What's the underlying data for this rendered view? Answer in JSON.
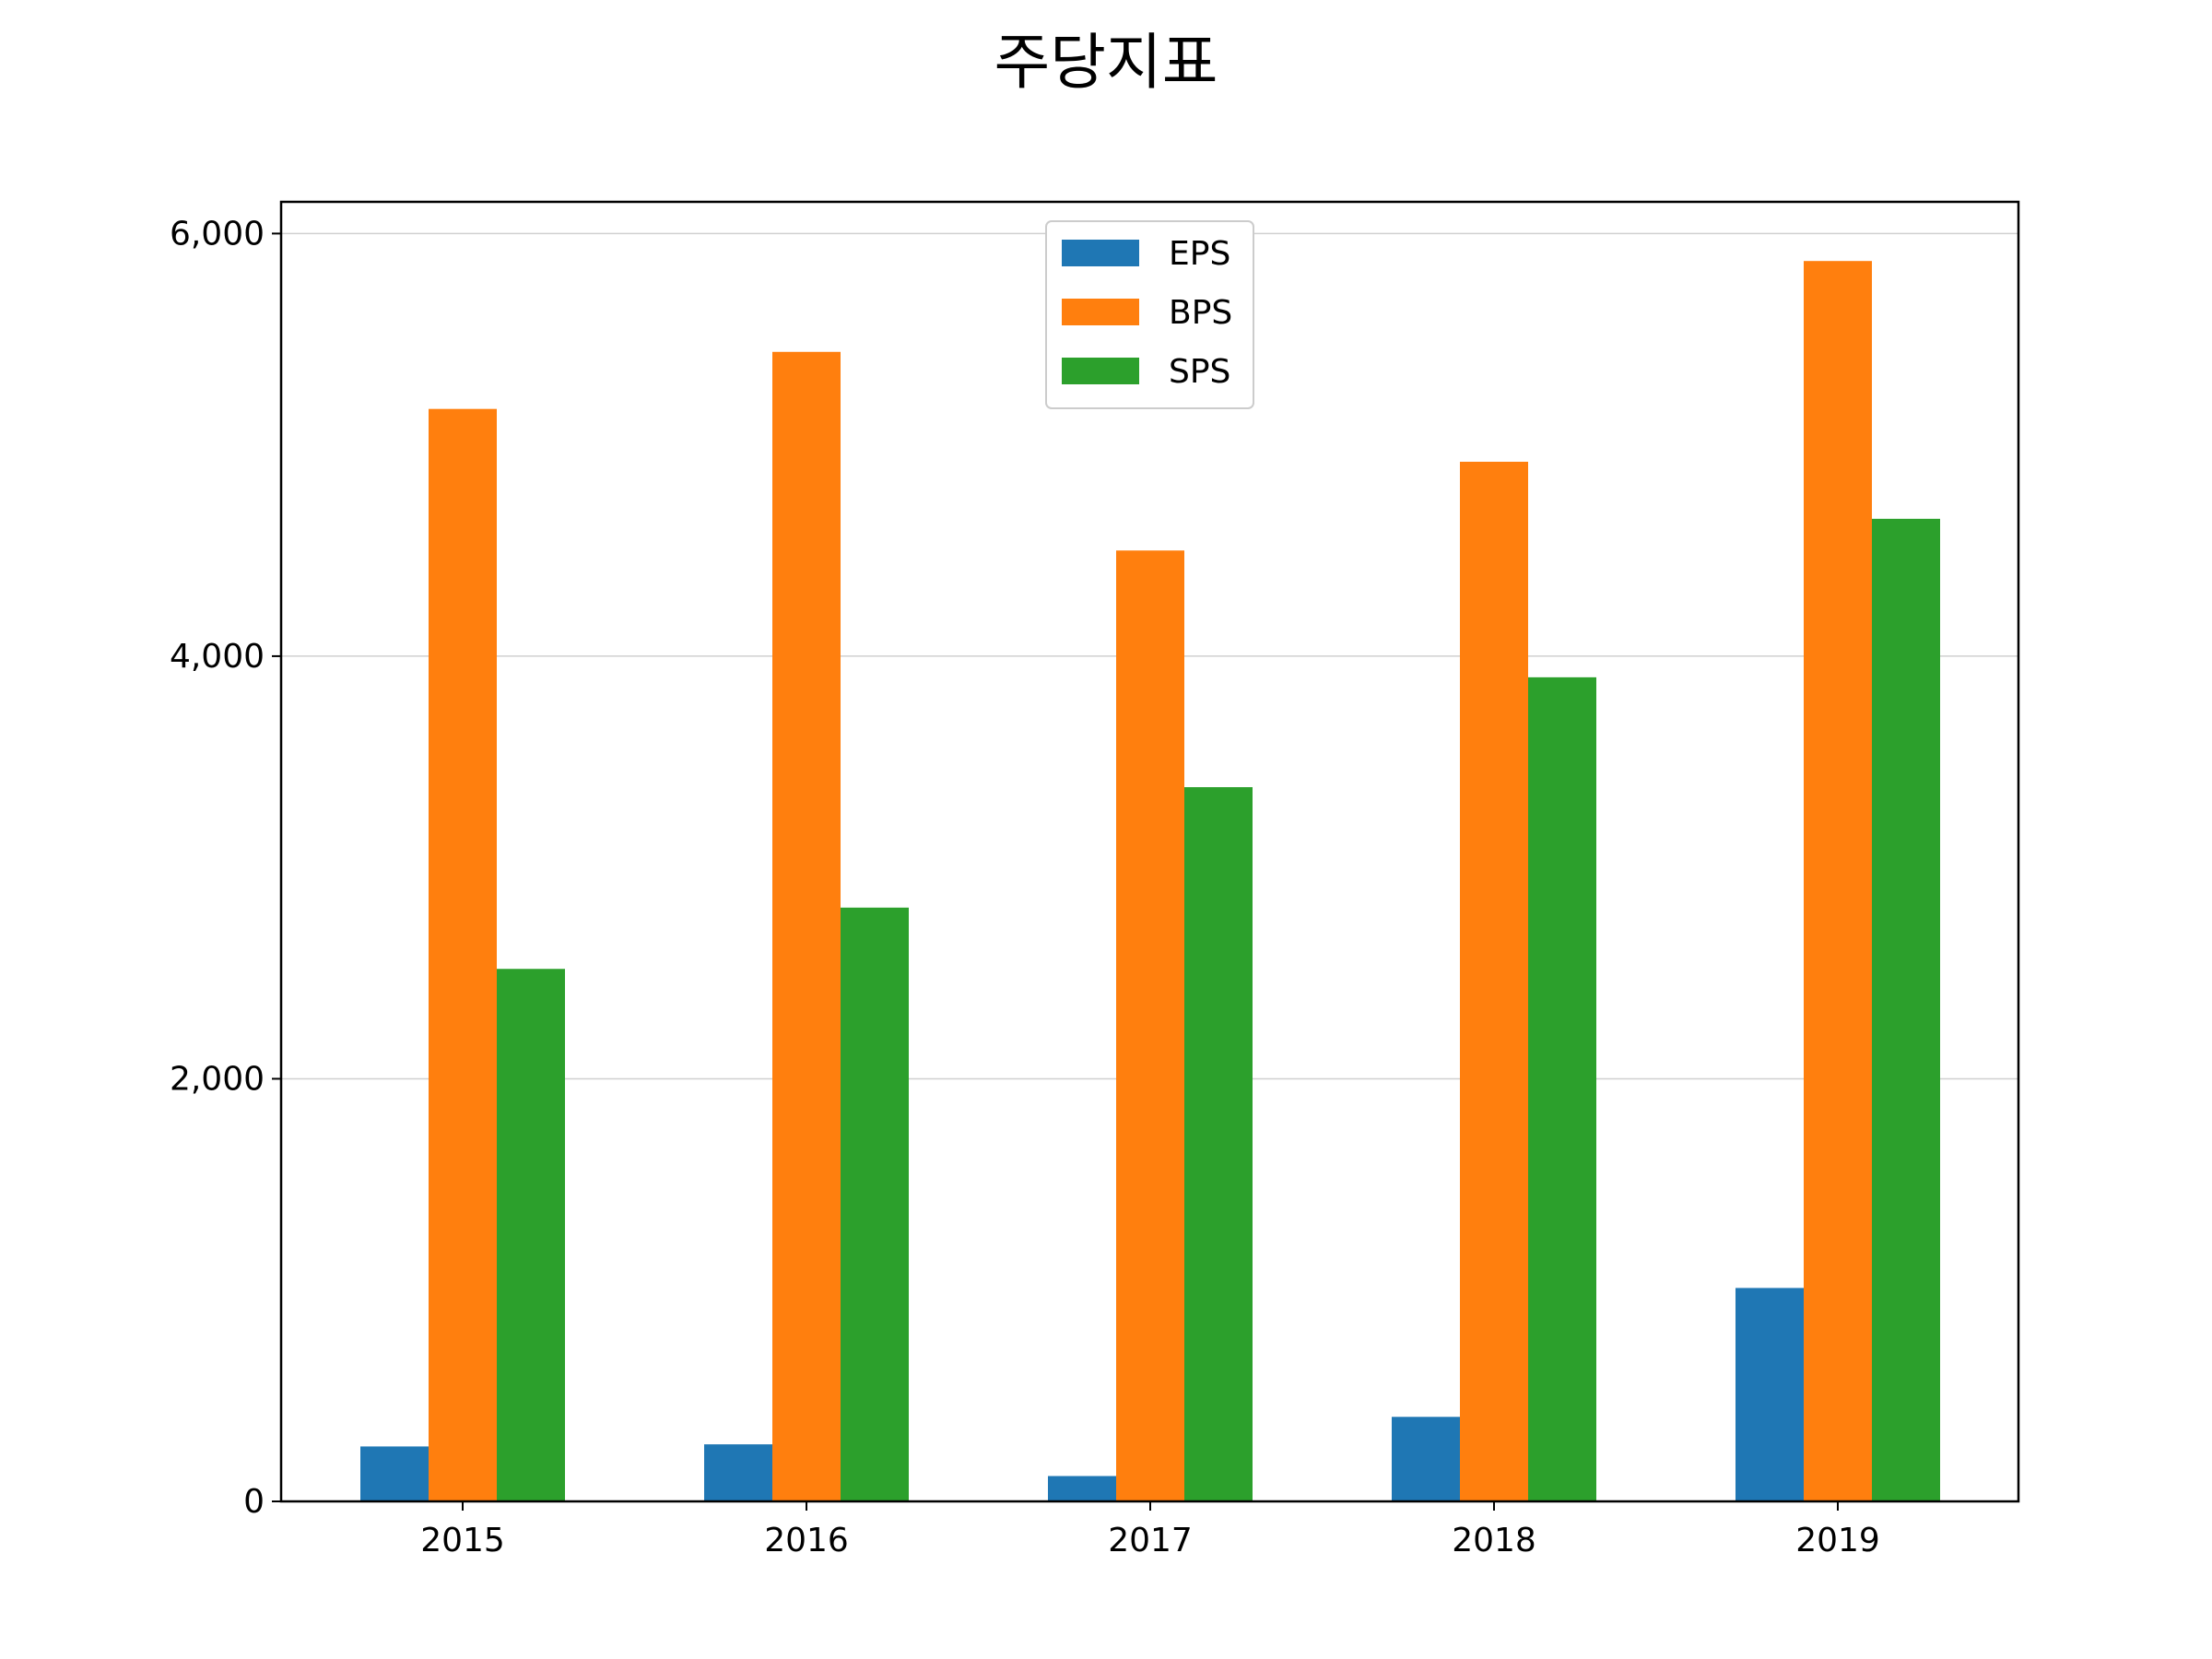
{
  "chart_data": {
    "type": "bar",
    "title": "주당지표",
    "xlabel": "",
    "ylabel": "",
    "categories": [
      "2015",
      "2016",
      "2017",
      "2018",
      "2019"
    ],
    "series": [
      {
        "name": "EPS",
        "color": "#1f77b4",
        "values": [
          260,
          270,
          120,
          400,
          1010
        ]
      },
      {
        "name": "BPS",
        "color": "#ff7f0e",
        "values": [
          5170,
          5440,
          4500,
          4920,
          5870
        ]
      },
      {
        "name": "SPS",
        "color": "#2ca02c",
        "values": [
          2520,
          2810,
          3380,
          3900,
          4650
        ]
      }
    ],
    "ylim": [
      0,
      6150
    ],
    "yticks": [
      0,
      2000,
      4000,
      6000
    ],
    "ytick_labels": [
      "0",
      "2,000",
      "4,000",
      "6,000"
    ],
    "grid": "y-major",
    "legend_position": "top-center"
  }
}
